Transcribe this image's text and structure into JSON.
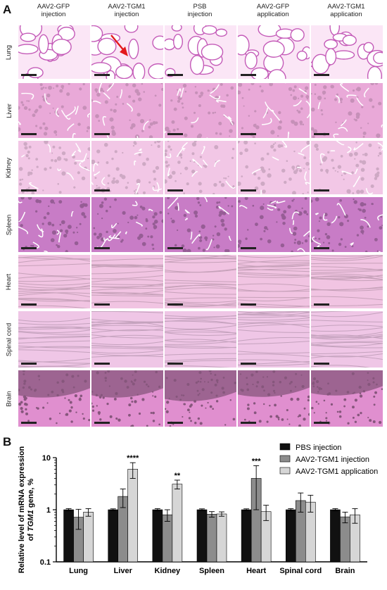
{
  "panel_a": {
    "letter": "A",
    "columns": [
      "AAV2-GFP\ninjection",
      "AAV2-TGM1\ninjection",
      "PSB\ninjection",
      "AAV2-GFP\napplication",
      "AAV2-TGM1\napplication"
    ],
    "rows": [
      "Lung",
      "Liver",
      "Kidney",
      "Spleen",
      "Heart",
      "Spinal cord",
      "Brain"
    ],
    "tissue_colors": {
      "Lung": "#fbe6f6",
      "Liver": "#e9a9d8",
      "Kidney": "#f2c7e6",
      "Spleen": "#c87cc6",
      "Heart": "#f1c4e2",
      "Spinal cord": "#efc6e6",
      "Brain": "#e08fcf"
    },
    "arrow_color": "#e3191c"
  },
  "panel_b": {
    "letter": "B",
    "chart_data": {
      "type": "bar",
      "title": "",
      "ylabel_parts": [
        "Relative level of mRNA expression",
        "of ",
        "TGM1",
        " gene, %"
      ],
      "xlabel": "",
      "yscale": "log",
      "ylim": [
        0.1,
        10
      ],
      "yticks": [
        "0.1",
        "1",
        "10"
      ],
      "categories": [
        "Lung",
        "Liver",
        "Kidney",
        "Spleen",
        "Heart",
        "Spinal cord",
        "Brain"
      ],
      "series": [
        {
          "name": "PBS injection",
          "color": "#111111",
          "values": [
            1,
            1,
            1,
            1,
            1,
            1,
            1
          ],
          "errors": [
            0.05,
            0.04,
            0.05,
            0.04,
            0.04,
            0.05,
            0.05
          ]
        },
        {
          "name": "AAV2-TGM1 injection",
          "color": "#8c8c8c",
          "values": [
            0.72,
            1.8,
            0.8,
            0.82,
            4.0,
            1.5,
            0.73
          ],
          "errors": [
            0.3,
            0.7,
            0.2,
            0.1,
            3.0,
            0.6,
            0.17
          ]
        },
        {
          "name": "AAV2-TGM1 application",
          "color": "#d6d6d6",
          "values": [
            0.9,
            6.0,
            3.1,
            0.83,
            0.92,
            1.4,
            0.8
          ],
          "errors": [
            0.15,
            2.0,
            0.6,
            0.08,
            0.3,
            0.5,
            0.25
          ]
        }
      ],
      "annotations": [
        {
          "category": "Liver",
          "series": "AAV2-TGM1 application",
          "text": "****"
        },
        {
          "category": "Kidney",
          "series": "AAV2-TGM1 application",
          "text": "**"
        },
        {
          "category": "Heart",
          "series": "AAV2-TGM1 injection",
          "text": "***"
        }
      ],
      "legend_position": "top-right",
      "grid": false
    }
  }
}
